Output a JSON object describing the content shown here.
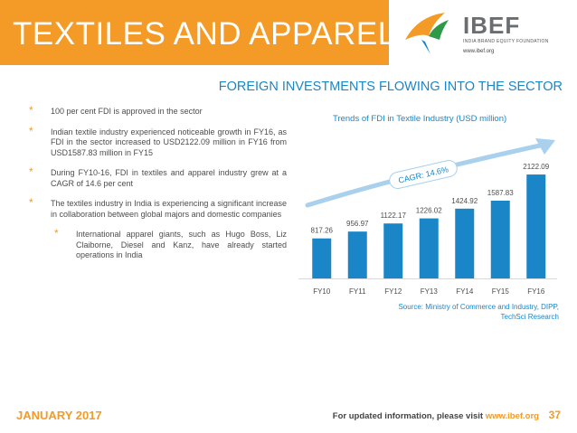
{
  "header": {
    "title": "TEXTILES AND APPAREL",
    "logo": {
      "word": "IBEF",
      "tagline": "INDIA BRAND EQUITY FOUNDATION",
      "url": "www.ibef.org"
    }
  },
  "section_title": "FOREIGN INVESTMENTS FLOWING INTO THE SECTOR",
  "bullets": [
    {
      "text": "100 per cent FDI is approved in the sector"
    },
    {
      "text": "Indian textile industry experienced noticeable growth in FY16, as FDI in the sector increased to USD2122.09 million in FY16 from USD1587.83 million in FY15"
    },
    {
      "text": "During FY10-16, FDI in textiles and apparel industry grew at a CAGR of 14.6 per cent"
    },
    {
      "text": "The textiles industry in India is experiencing a significant increase in collaboration between global majors and domestic companies"
    },
    {
      "text": "International apparel giants, such as Hugo Boss, Liz Claiborne, Diesel and Kanz, have already started operations in India"
    }
  ],
  "chart_data": {
    "type": "bar",
    "title": "Trends of FDI in Textile Industry (USD million)",
    "categories": [
      "FY10",
      "FY11",
      "FY12",
      "FY13",
      "FY14",
      "FY15",
      "FY16"
    ],
    "values": [
      817.26,
      956.97,
      1122.17,
      1226.02,
      1424.92,
      1587.83,
      2122.09
    ],
    "data_labels": [
      "817.26",
      "956.97",
      "1122.17",
      "1226.02",
      "1424.92",
      "1587.83",
      "2122.09"
    ],
    "annotation": "CAGR: 14.6%",
    "ylim": [
      0,
      2400
    ],
    "grid": false,
    "bar_color": "#1a86c8",
    "source": "Source: Ministry of Commerce and Industry, DIPP, TechSci Research"
  },
  "footer": {
    "date": "JANUARY 2017",
    "text": "For updated information, please visit",
    "link": "www.ibef.org",
    "page": "37"
  },
  "colors": {
    "accent": "#f49a27",
    "blue": "#1a86c8",
    "text": "#4d4d4d"
  }
}
